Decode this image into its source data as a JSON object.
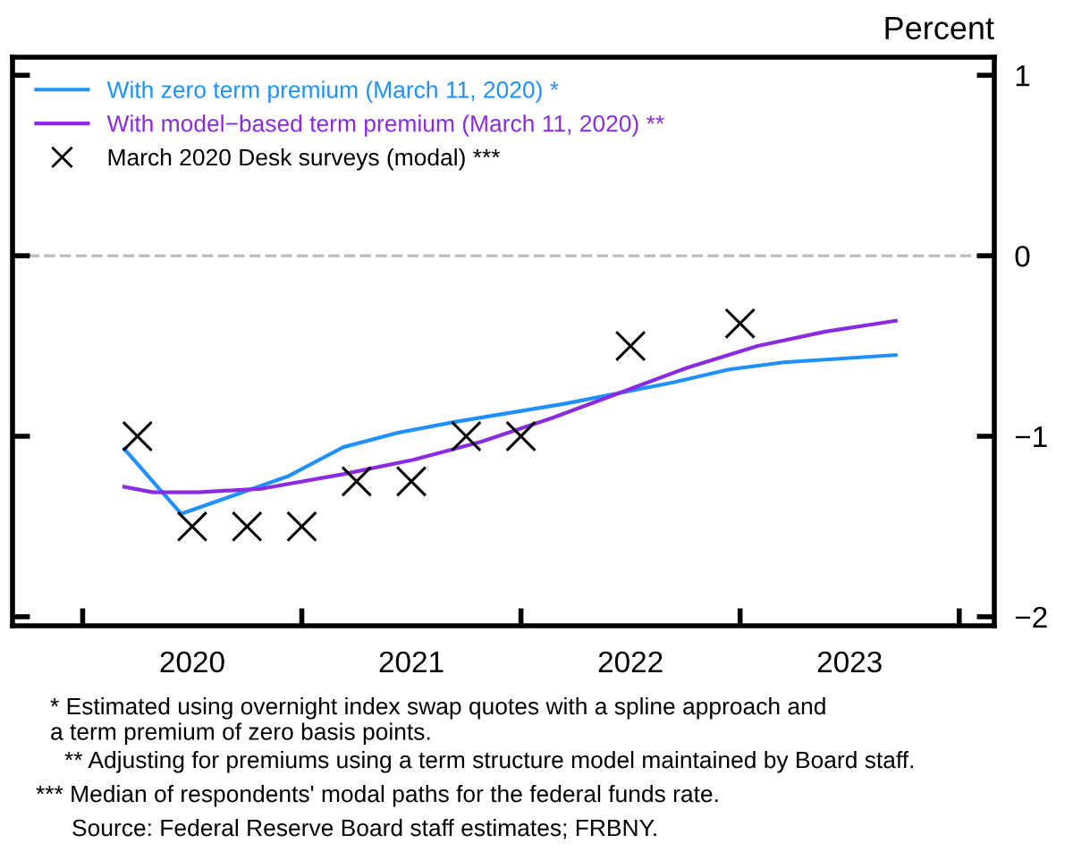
{
  "chart_data": {
    "type": "line",
    "ylabel": "Percent",
    "x": [
      2020.19,
      2020.45,
      2020.94,
      2021.19,
      2021.44,
      2021.7,
      2022.2,
      2022.7,
      2022.95,
      2023.2,
      2023.71
    ],
    "series": [
      {
        "name": "With zero term premium (March 11, 2020) *",
        "color": "#1e90ff",
        "values": [
          -1.07,
          -1.43,
          -1.22,
          -1.06,
          -0.98,
          -0.92,
          -0.82,
          -0.7,
          -0.63,
          -0.59,
          -0.55
        ]
      },
      {
        "name": "With model−based term premium (March 11, 2020) **",
        "color": "#8a2be2",
        "x": [
          2020.19,
          2020.32,
          2020.53,
          2020.82,
          2021.19,
          2021.51,
          2021.82,
          2022.14,
          2022.45,
          2022.76,
          2023.08,
          2023.39,
          2023.71
        ],
        "values": [
          -1.28,
          -1.31,
          -1.31,
          -1.29,
          -1.21,
          -1.13,
          -1.03,
          -0.9,
          -0.76,
          -0.62,
          -0.5,
          -0.42,
          -0.36
        ]
      },
      {
        "name": "March 2020 Desk surveys (modal) ***",
        "type": "scatter",
        "marker": "cross",
        "color": "#000000",
        "x": [
          2020.25,
          2020.5,
          2020.75,
          2021.0,
          2021.25,
          2021.5,
          2021.75,
          2022.0,
          2022.5,
          2023.0
        ],
        "values": [
          -1.0,
          -1.5,
          -1.5,
          -1.5,
          -1.25,
          -1.25,
          -1.0,
          -1.0,
          -0.5,
          -0.375
        ]
      }
    ],
    "xlim": [
      2019.68,
      2024.16
    ],
    "xticks": [
      {
        "value": 2020,
        "label": null
      },
      {
        "value": 2020.5,
        "label": "2020"
      },
      {
        "value": 2021,
        "label": null
      },
      {
        "value": 2021.5,
        "label": "2021"
      },
      {
        "value": 2022,
        "label": null
      },
      {
        "value": 2022.5,
        "label": "2022"
      },
      {
        "value": 2023,
        "label": null
      },
      {
        "value": 2023.5,
        "label": "2023"
      },
      {
        "value": 2024,
        "label": null
      }
    ],
    "ylim": [
      -2.05,
      1.1
    ],
    "yticks": [
      {
        "value": 1,
        "label": "1"
      },
      {
        "value": 0,
        "label": "0"
      },
      {
        "value": -1,
        "label": "−1"
      },
      {
        "value": -2,
        "label": "−2"
      }
    ],
    "ref_lines": [
      {
        "axis": "y",
        "value": 0,
        "color": "#bbbbbb",
        "line_style": "dashed"
      }
    ],
    "legend": "top left",
    "grid": false,
    "annotations": [
      "* Estimated using overnight index swap quotes with a spline approach and\na term premium of zero basis points.",
      "** Adjusting for premiums using a term structure model maintained by Board staff.",
      "*** Median of respondents' modal paths for the federal funds rate.",
      "Source: Federal Reserve Board staff estimates; FRBNY."
    ]
  }
}
